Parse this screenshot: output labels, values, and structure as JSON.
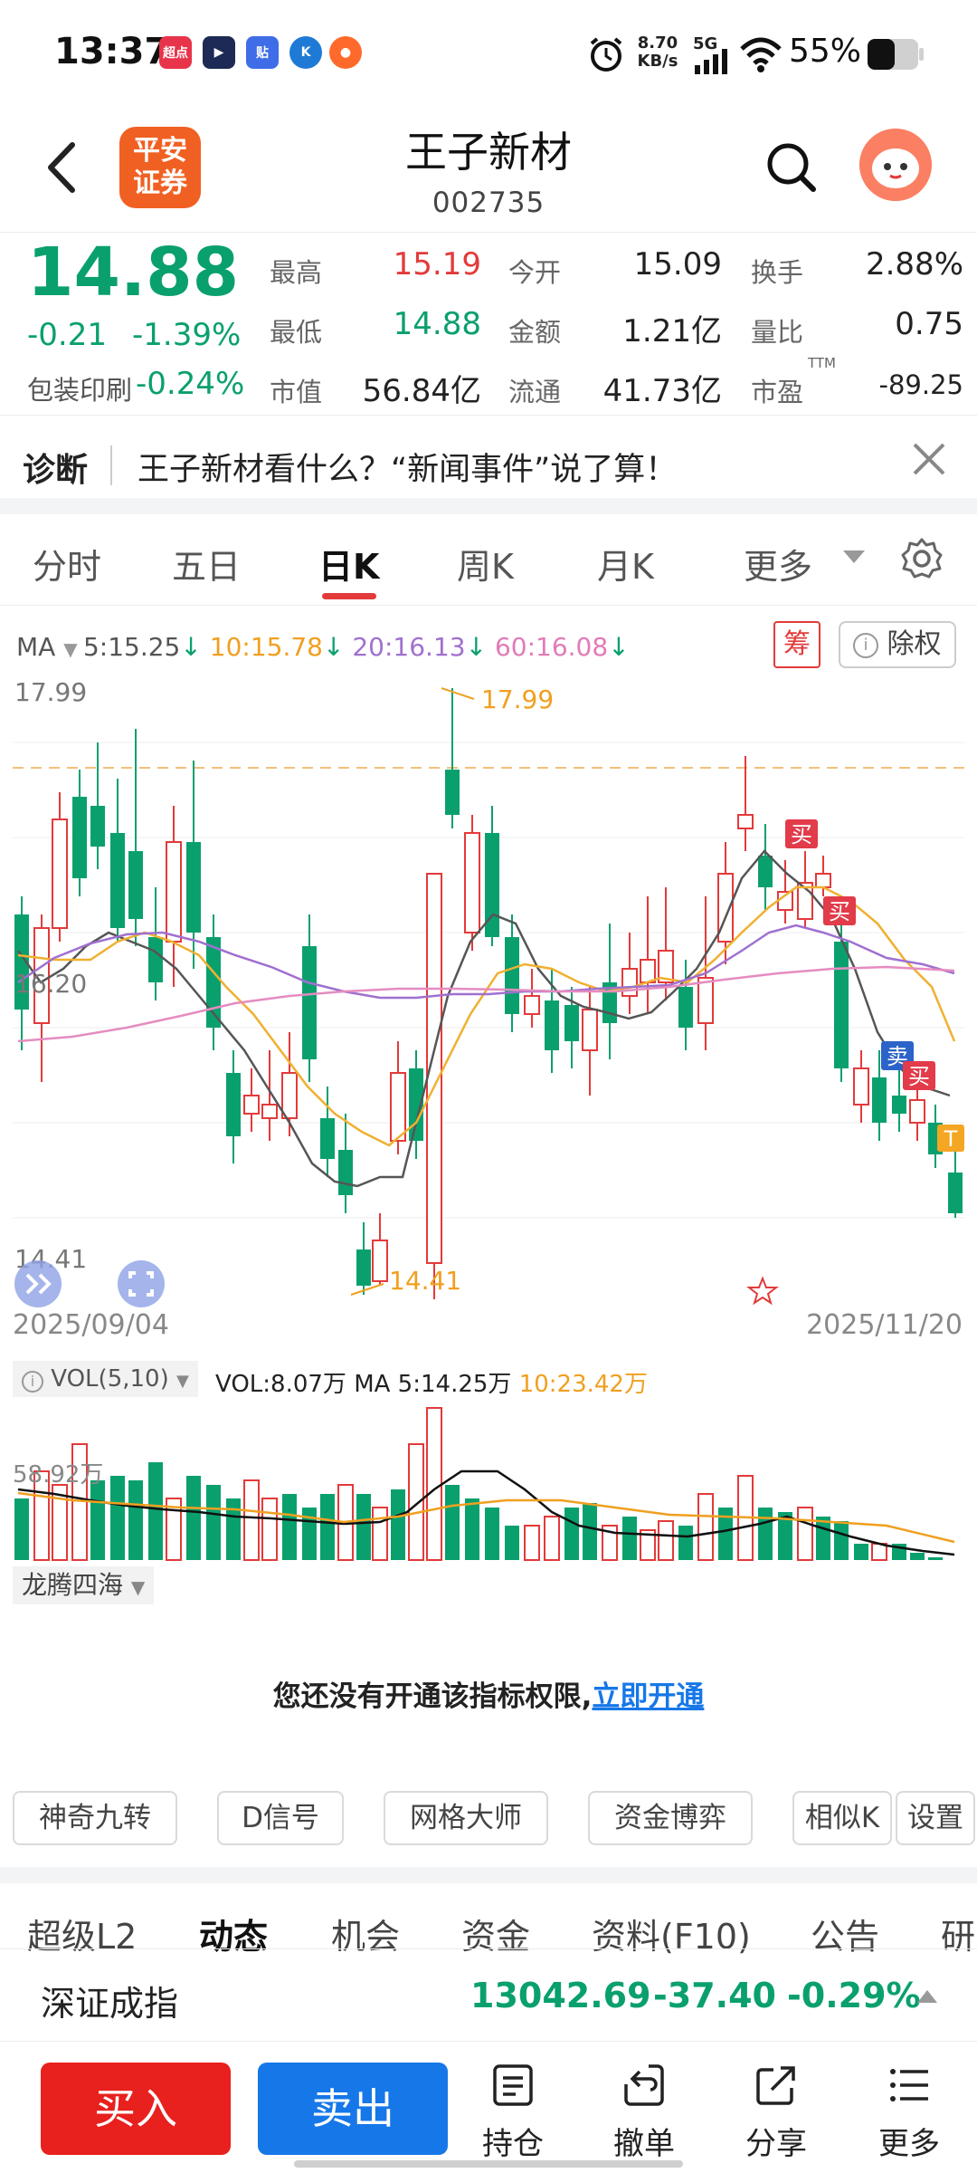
{
  "status": {
    "time": "13:37",
    "apps": [
      {
        "icon": "chaodian-app-icon",
        "text": "超点",
        "color": "#e8344a"
      },
      {
        "icon": "play-app-icon",
        "text": "▶",
        "color": "#1c2a55"
      },
      {
        "icon": "tieba-app-icon",
        "text": "贴",
        "color": "#3f6de8"
      },
      {
        "icon": "k-app-icon",
        "text": "K",
        "color": "#1f7ad6"
      },
      {
        "icon": "weather-app-icon",
        "text": "●",
        "color": "#ff6a2c"
      }
    ],
    "net_speed": "8.70",
    "net_unit": "KB/s",
    "signal": "5G",
    "battery": "55%"
  },
  "header": {
    "broker_line1": "平安",
    "broker_line2": "证券",
    "stock_name": "王子新材",
    "stock_code": "002735"
  },
  "quote": {
    "price": "14.88",
    "change": "-0.21",
    "change_pct": "-1.39%",
    "sector_name": "包装印刷",
    "sector_pct": "-0.24%",
    "items": [
      {
        "label": "最高",
        "value": "15.19",
        "color": "red"
      },
      {
        "label": "今开",
        "value": "15.09",
        "color": "black"
      },
      {
        "label": "换手",
        "value": "2.88%",
        "color": "black"
      },
      {
        "label": "最低",
        "value": "14.88",
        "color": "green"
      },
      {
        "label": "金额",
        "value": "1.21亿",
        "color": "black"
      },
      {
        "label": "量比",
        "value": "0.75",
        "color": "black"
      },
      {
        "label": "市值",
        "value": "56.84亿",
        "color": "black"
      },
      {
        "label": "流通",
        "value": "41.73亿",
        "color": "black"
      },
      {
        "label": "市盈",
        "value": "-89.25",
        "color": "black"
      }
    ],
    "ttm": "TTM"
  },
  "diagnosis": {
    "label": "诊断",
    "text": "王子新材看什么？“新闻事件”说了算！"
  },
  "period_tabs": [
    "分时",
    "五日",
    "日K",
    "周K",
    "月K",
    "更多"
  ],
  "active_period": "日K",
  "ma": {
    "label": "MA",
    "items": [
      {
        "text": "5:15.25",
        "color": "#555555"
      },
      {
        "text": "10:15.78",
        "color": "#f0a020"
      },
      {
        "text": "20:16.13",
        "color": "#a070d0"
      },
      {
        "text": "60:16.08",
        "color": "#e27bb8"
      }
    ],
    "chou": "筹",
    "chuquan": "除权"
  },
  "kline": {
    "price_high_label": "17.99",
    "price_mid_label": "16.20",
    "price_low_label": "14.41",
    "marker_high": "17.99",
    "marker_low": "14.41",
    "date_start": "2025/09/04",
    "date_end": "2025/11/20",
    "signals": [
      "买",
      "买",
      "卖",
      "买",
      "T"
    ]
  },
  "volume": {
    "indicator": "VOL(5,10)",
    "vol": "VOL:8.07万",
    "ma5": "MA 5:14.25万",
    "ma10": "10:23.42万",
    "axis_label": "58.92万"
  },
  "indicator2": {
    "name": "龙腾四海",
    "notice": "您还没有开通该指标权限,",
    "link": "立即开通"
  },
  "tools": [
    "神奇九转",
    "D信号",
    "网格大师",
    "资金博弈",
    "相似K",
    "设置"
  ],
  "feature_tabs": [
    "超级L2",
    "动态",
    "机会",
    "资金",
    "资料(F10)",
    "公告",
    "研"
  ],
  "active_feature": "动态",
  "index": {
    "name": "深证成指",
    "value": "13042.69",
    "change": "-37.40",
    "pct": "-0.29%"
  },
  "bottom": {
    "buy": "买入",
    "sell": "卖出",
    "items": [
      {
        "label": "持仓",
        "icon": "holdings-icon"
      },
      {
        "label": "撤单",
        "icon": "cancel-order-icon"
      },
      {
        "label": "分享",
        "icon": "share-icon"
      },
      {
        "label": "更多",
        "icon": "more-menu-icon"
      }
    ]
  }
}
